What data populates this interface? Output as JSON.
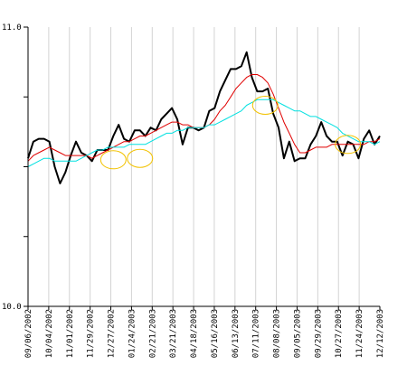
{
  "chart_data": {
    "type": "line",
    "title": "",
    "xlabel": "",
    "ylabel": "",
    "ylim": [
      10.0,
      11.0
    ],
    "y_tick_values": [
      10.0,
      10.25,
      10.5,
      10.75,
      11.0
    ],
    "y_tick_labels": [
      "10.0",
      "",
      "",
      "",
      "11.0"
    ],
    "grid": "vertical",
    "x_tick_labels": [
      "09/06/2002",
      "10/04/2002",
      "11/01/2002",
      "11/29/2002",
      "12/27/2002",
      "01/24/2003",
      "02/21/2003",
      "03/21/2003",
      "04/18/2003",
      "05/16/2003",
      "06/13/2003",
      "07/11/2003",
      "08/08/2003",
      "09/05/2003",
      "09/29/2003",
      "10/27/2003",
      "11/24/2003",
      "12/12/2003"
    ],
    "n_points": 67,
    "series": [
      {
        "color": "#000000",
        "values": [
          10.53,
          10.59,
          10.6,
          10.6,
          10.59,
          10.5,
          10.44,
          10.48,
          10.54,
          10.59,
          10.55,
          10.54,
          10.52,
          10.56,
          10.56,
          10.56,
          10.61,
          10.65,
          10.6,
          10.59,
          10.63,
          10.63,
          10.61,
          10.64,
          10.63,
          10.67,
          10.69,
          10.71,
          10.67,
          10.58,
          10.64,
          10.64,
          10.63,
          10.64,
          10.7,
          10.71,
          10.77,
          10.81,
          10.85,
          10.85,
          10.86,
          10.91,
          10.82,
          10.77,
          10.77,
          10.78,
          10.69,
          10.64,
          10.53,
          10.59,
          10.52,
          10.53,
          10.53,
          10.58,
          10.61,
          10.66,
          10.61,
          10.59,
          10.59,
          10.54,
          10.59,
          10.58,
          10.53,
          10.6,
          10.63,
          10.58,
          10.61
        ]
      },
      {
        "color": "#e00000",
        "values": [
          10.52,
          10.54,
          10.55,
          10.56,
          10.57,
          10.56,
          10.55,
          10.54,
          10.54,
          10.54,
          10.54,
          10.54,
          10.53,
          10.54,
          10.55,
          10.56,
          10.57,
          10.58,
          10.59,
          10.59,
          10.6,
          10.61,
          10.61,
          10.62,
          10.63,
          10.64,
          10.65,
          10.66,
          10.66,
          10.65,
          10.65,
          10.64,
          10.64,
          10.64,
          10.65,
          10.67,
          10.7,
          10.72,
          10.75,
          10.78,
          10.8,
          10.82,
          10.83,
          10.83,
          10.82,
          10.8,
          10.76,
          10.71,
          10.66,
          10.62,
          10.58,
          10.55,
          10.55,
          10.56,
          10.57,
          10.57,
          10.57,
          10.58,
          10.58,
          10.58,
          10.58,
          10.58,
          10.58,
          10.58,
          10.59,
          10.59,
          10.6
        ]
      },
      {
        "color": "#00e0e0",
        "values": [
          10.5,
          10.51,
          10.52,
          10.53,
          10.53,
          10.52,
          10.52,
          10.52,
          10.52,
          10.52,
          10.53,
          10.54,
          10.55,
          10.56,
          10.56,
          10.57,
          10.57,
          10.57,
          10.57,
          10.58,
          10.58,
          10.58,
          10.58,
          10.59,
          10.6,
          10.61,
          10.62,
          10.62,
          10.63,
          10.63,
          10.64,
          10.64,
          10.64,
          10.64,
          10.65,
          10.65,
          10.66,
          10.67,
          10.68,
          10.69,
          10.7,
          10.72,
          10.73,
          10.74,
          10.74,
          10.74,
          10.74,
          10.73,
          10.72,
          10.71,
          10.7,
          10.7,
          10.69,
          10.68,
          10.68,
          10.67,
          10.66,
          10.65,
          10.64,
          10.62,
          10.61,
          10.6,
          10.59,
          10.59,
          10.59,
          10.58,
          10.59
        ]
      }
    ],
    "highlights": [
      {
        "color": "#f2c200",
        "x": 16.0,
        "y": 10.525
      },
      {
        "color": "#f2c200",
        "x": 21.0,
        "y": 10.53
      },
      {
        "color": "#f2c200",
        "x": 44.5,
        "y": 10.72
      },
      {
        "color": "#f2c200",
        "x": 60.0,
        "y": 10.58
      }
    ]
  }
}
